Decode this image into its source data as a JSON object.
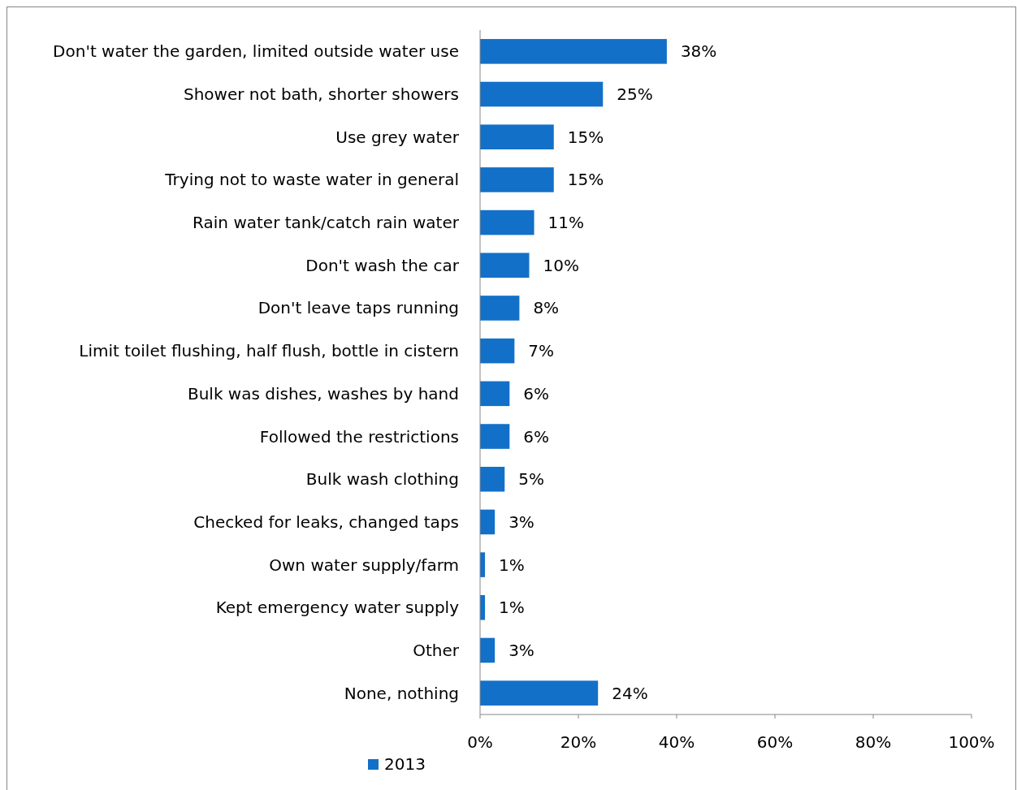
{
  "chart_data": {
    "type": "bar",
    "orientation": "horizontal",
    "categories": [
      "Don't water the garden, limited outside water use",
      "Shower not bath, shorter showers",
      "Use grey water",
      "Trying not to waste water in general",
      "Rain water tank/catch rain water",
      "Don't wash the car",
      "Don't leave taps running",
      "Limit toilet flushing, half flush, bottle in cistern",
      "Bulk was dishes, washes by hand",
      "Followed the restrictions",
      "Bulk wash clothing",
      "Checked for leaks, changed taps",
      "Own water supply/farm",
      "Kept emergency water supply",
      "Other",
      "None, nothing"
    ],
    "series": [
      {
        "name": "2013",
        "color": "#1270c8",
        "values": [
          38,
          25,
          15,
          15,
          11,
          10,
          8,
          7,
          6,
          6,
          5,
          3,
          1,
          1,
          3,
          24
        ],
        "value_labels": [
          "38%",
          "25%",
          "15%",
          "15%",
          "11%",
          "10%",
          "8%",
          "7%",
          "6%",
          "6%",
          "5%",
          "3%",
          "1%",
          "1%",
          "3%",
          "24%"
        ]
      }
    ],
    "xlim": [
      0,
      100
    ],
    "xticks": [
      {
        "value": 0,
        "label": "0%"
      },
      {
        "value": 20,
        "label": "20%"
      },
      {
        "value": 40,
        "label": "40%"
      },
      {
        "value": 60,
        "label": "60%"
      },
      {
        "value": 80,
        "label": "80%"
      },
      {
        "value": 100,
        "label": "100%"
      }
    ],
    "grid": false,
    "legend": "bottom"
  }
}
